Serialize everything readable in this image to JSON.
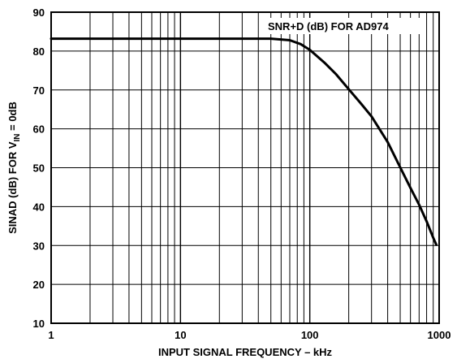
{
  "chart_data": {
    "type": "line",
    "xlabel": "INPUT SIGNAL FREQUENCY – kHz",
    "ylabel": {
      "prefix": "SINAD (dB) FOR V",
      "subscript": "IN",
      "suffix": " = 0dB"
    },
    "annotation": "SNR+D (dB) FOR AD974",
    "x_scale": "log",
    "xlim": [
      1,
      1000
    ],
    "ylim": [
      10,
      90
    ],
    "x_tick_labels": [
      "1",
      "10",
      "100",
      "1000"
    ],
    "y_tick_labels": [
      "10",
      "20",
      "30",
      "40",
      "50",
      "60",
      "70",
      "80",
      "90"
    ],
    "grid": true,
    "series": [
      {
        "x": [
          1,
          10,
          30,
          50,
          70,
          85,
          100,
          130,
          160,
          200,
          250,
          300,
          400,
          500,
          600,
          700,
          800,
          900,
          950
        ],
        "y": [
          83.2,
          83.2,
          83.2,
          83.2,
          82.8,
          81.8,
          80.3,
          77.0,
          74.0,
          70.2,
          66.4,
          63.2,
          56.6,
          50.1,
          44.8,
          40.5,
          36.2,
          32.0,
          30.2
        ]
      }
    ]
  }
}
